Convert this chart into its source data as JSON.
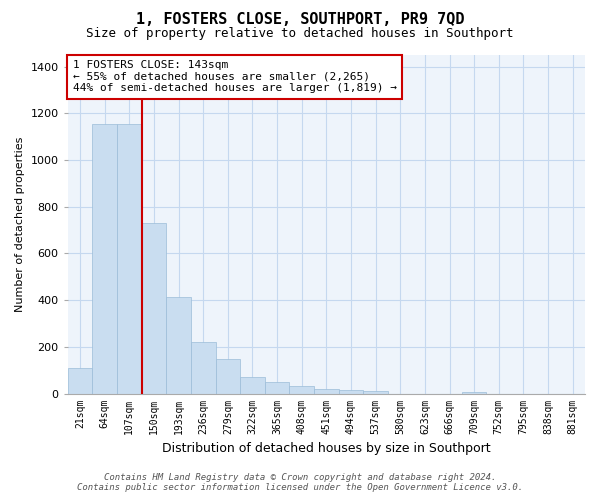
{
  "title": "1, FOSTERS CLOSE, SOUTHPORT, PR9 7QD",
  "subtitle": "Size of property relative to detached houses in Southport",
  "xlabel": "Distribution of detached houses by size in Southport",
  "ylabel": "Number of detached properties",
  "categories": [
    "21sqm",
    "64sqm",
    "107sqm",
    "150sqm",
    "193sqm",
    "236sqm",
    "279sqm",
    "322sqm",
    "365sqm",
    "408sqm",
    "451sqm",
    "494sqm",
    "537sqm",
    "580sqm",
    "623sqm",
    "666sqm",
    "709sqm",
    "752sqm",
    "795sqm",
    "838sqm",
    "881sqm"
  ],
  "values": [
    110,
    1155,
    1155,
    730,
    415,
    220,
    148,
    73,
    50,
    33,
    20,
    15,
    13,
    0,
    0,
    0,
    8,
    0,
    0,
    0,
    0
  ],
  "bar_color": "#c9ddf0",
  "bar_edge_color": "#9bbcd8",
  "vline_color": "#cc0000",
  "annotation_text": "1 FOSTERS CLOSE: 143sqm\n← 55% of detached houses are smaller (2,265)\n44% of semi-detached houses are larger (1,819) →",
  "annotation_box_color": "#ffffff",
  "annotation_box_edge": "#cc0000",
  "ylim": [
    0,
    1450
  ],
  "yticks": [
    0,
    200,
    400,
    600,
    800,
    1000,
    1200,
    1400
  ],
  "footer_line1": "Contains HM Land Registry data © Crown copyright and database right 2024.",
  "footer_line2": "Contains public sector information licensed under the Open Government Licence v3.0.",
  "plot_bg_color": "#eef4fb",
  "fig_bg_color": "#ffffff",
  "grid_color": "#c5d8ef"
}
